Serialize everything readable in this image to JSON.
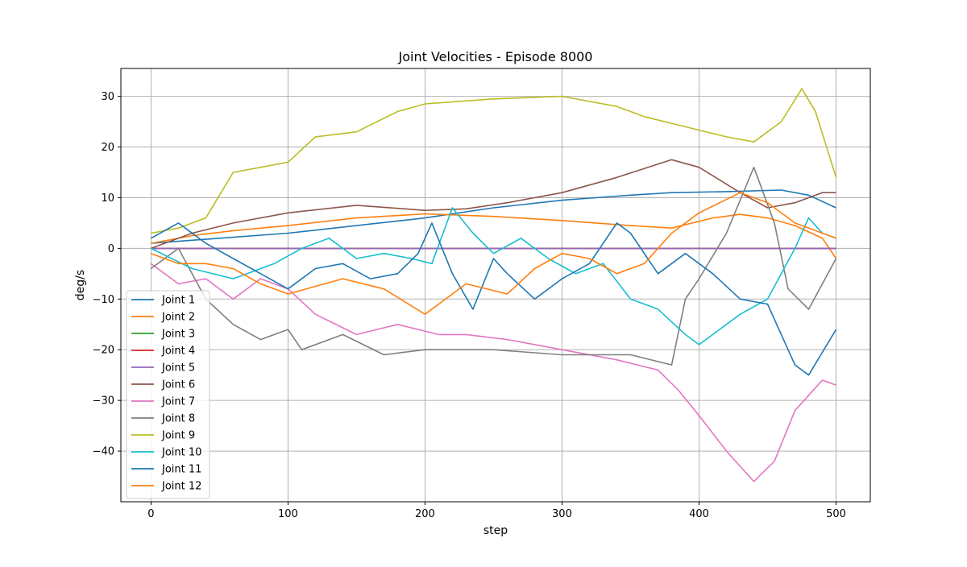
{
  "chart_data": {
    "type": "line",
    "title": "Joint Velocities - Episode 8000",
    "xlabel": "step",
    "ylabel": "deg/s",
    "xlim": [
      -22,
      525
    ],
    "ylim": [
      -50,
      35.5
    ],
    "xticks": [
      0,
      100,
      200,
      300,
      400,
      500
    ],
    "yticks": [
      -40,
      -30,
      -20,
      -10,
      0,
      10,
      20,
      30
    ],
    "grid": true,
    "legend_position": "lower left",
    "series": [
      {
        "name": "Joint 1",
        "color": "#1f77b4",
        "points": [
          [
            0,
            1
          ],
          [
            50,
            2
          ],
          [
            100,
            3
          ],
          [
            150,
            4.5
          ],
          [
            200,
            6
          ],
          [
            250,
            8
          ],
          [
            300,
            9.5
          ],
          [
            350,
            10.5
          ],
          [
            380,
            11
          ],
          [
            420,
            11.2
          ],
          [
            460,
            11.5
          ],
          [
            480,
            10.5
          ],
          [
            500,
            8
          ]
        ]
      },
      {
        "name": "Joint 2",
        "color": "#ff7f0e",
        "points": [
          [
            0,
            1
          ],
          [
            30,
            2.5
          ],
          [
            60,
            3.5
          ],
          [
            100,
            4.5
          ],
          [
            150,
            6
          ],
          [
            200,
            6.8
          ],
          [
            250,
            6.3
          ],
          [
            300,
            5.5
          ],
          [
            350,
            4.5
          ],
          [
            380,
            4
          ],
          [
            410,
            6
          ],
          [
            430,
            6.7
          ],
          [
            450,
            6
          ],
          [
            470,
            4.5
          ],
          [
            490,
            2
          ],
          [
            500,
            -2
          ]
        ]
      },
      {
        "name": "Joint 3",
        "color": "#2ca02c",
        "points": [
          [
            0,
            0
          ],
          [
            500,
            0
          ]
        ]
      },
      {
        "name": "Joint 4",
        "color": "#d62728",
        "points": [
          [
            0,
            0
          ],
          [
            500,
            0
          ]
        ]
      },
      {
        "name": "Joint 5",
        "color": "#9467bd",
        "points": [
          [
            0,
            0
          ],
          [
            500,
            0
          ]
        ]
      },
      {
        "name": "Joint 6",
        "color": "#8c564b",
        "points": [
          [
            0,
            0
          ],
          [
            30,
            3
          ],
          [
            60,
            5
          ],
          [
            100,
            7
          ],
          [
            150,
            8.5
          ],
          [
            200,
            7.5
          ],
          [
            230,
            7.8
          ],
          [
            260,
            9
          ],
          [
            300,
            11
          ],
          [
            340,
            14
          ],
          [
            380,
            17.5
          ],
          [
            400,
            16
          ],
          [
            430,
            11
          ],
          [
            450,
            8
          ],
          [
            470,
            9
          ],
          [
            490,
            11
          ],
          [
            500,
            11
          ]
        ]
      },
      {
        "name": "Joint 7",
        "color": "#e377c2",
        "points": [
          [
            0,
            -3
          ],
          [
            20,
            -7
          ],
          [
            40,
            -6
          ],
          [
            60,
            -10
          ],
          [
            80,
            -6
          ],
          [
            100,
            -8
          ],
          [
            120,
            -13
          ],
          [
            150,
            -17
          ],
          [
            180,
            -15
          ],
          [
            210,
            -17
          ],
          [
            230,
            -17
          ],
          [
            260,
            -18
          ],
          [
            300,
            -20
          ],
          [
            340,
            -22
          ],
          [
            370,
            -24
          ],
          [
            385,
            -28
          ],
          [
            400,
            -33
          ],
          [
            420,
            -40
          ],
          [
            440,
            -46
          ],
          [
            455,
            -42
          ],
          [
            470,
            -32
          ],
          [
            490,
            -26
          ],
          [
            500,
            -27
          ]
        ]
      },
      {
        "name": "Joint 8",
        "color": "#7f7f7f",
        "points": [
          [
            0,
            -4
          ],
          [
            20,
            0
          ],
          [
            40,
            -10
          ],
          [
            60,
            -15
          ],
          [
            80,
            -18
          ],
          [
            100,
            -16
          ],
          [
            110,
            -20
          ],
          [
            140,
            -17
          ],
          [
            170,
            -21
          ],
          [
            200,
            -20
          ],
          [
            250,
            -20
          ],
          [
            300,
            -21
          ],
          [
            350,
            -21
          ],
          [
            380,
            -23
          ],
          [
            390,
            -10
          ],
          [
            400,
            -6
          ],
          [
            420,
            3
          ],
          [
            440,
            16
          ],
          [
            455,
            5
          ],
          [
            465,
            -8
          ],
          [
            480,
            -12
          ],
          [
            500,
            -2
          ]
        ]
      },
      {
        "name": "Joint 9",
        "color": "#bcbd22",
        "points": [
          [
            0,
            3
          ],
          [
            20,
            4
          ],
          [
            40,
            6
          ],
          [
            60,
            15
          ],
          [
            80,
            16
          ],
          [
            100,
            17
          ],
          [
            120,
            22
          ],
          [
            150,
            23
          ],
          [
            180,
            27
          ],
          [
            200,
            28.5
          ],
          [
            250,
            29.5
          ],
          [
            300,
            30
          ],
          [
            340,
            28
          ],
          [
            360,
            26
          ],
          [
            390,
            24
          ],
          [
            420,
            22
          ],
          [
            440,
            21
          ],
          [
            460,
            25
          ],
          [
            475,
            31.5
          ],
          [
            485,
            27
          ],
          [
            500,
            14
          ]
        ]
      },
      {
        "name": "Joint 10",
        "color": "#17becf",
        "points": [
          [
            0,
            0
          ],
          [
            30,
            -4
          ],
          [
            60,
            -6
          ],
          [
            90,
            -3
          ],
          [
            110,
            0
          ],
          [
            130,
            2
          ],
          [
            150,
            -2
          ],
          [
            170,
            -1
          ],
          [
            190,
            -2
          ],
          [
            205,
            -3
          ],
          [
            220,
            8
          ],
          [
            235,
            3
          ],
          [
            250,
            -1
          ],
          [
            270,
            2
          ],
          [
            290,
            -2
          ],
          [
            310,
            -5
          ],
          [
            330,
            -3
          ],
          [
            350,
            -10
          ],
          [
            370,
            -12
          ],
          [
            390,
            -17
          ],
          [
            400,
            -19
          ],
          [
            430,
            -13
          ],
          [
            450,
            -10
          ],
          [
            470,
            0
          ],
          [
            480,
            6
          ],
          [
            490,
            3
          ],
          [
            500,
            2
          ]
        ]
      },
      {
        "name": "Joint 11",
        "color": "#1f77b4",
        "points": [
          [
            0,
            2
          ],
          [
            20,
            5
          ],
          [
            40,
            1
          ],
          [
            60,
            -2
          ],
          [
            80,
            -5
          ],
          [
            100,
            -8
          ],
          [
            120,
            -4
          ],
          [
            140,
            -3
          ],
          [
            160,
            -6
          ],
          [
            180,
            -5
          ],
          [
            195,
            -1
          ],
          [
            205,
            5
          ],
          [
            220,
            -5
          ],
          [
            235,
            -12
          ],
          [
            250,
            -2
          ],
          [
            260,
            -5
          ],
          [
            280,
            -10
          ],
          [
            300,
            -6
          ],
          [
            320,
            -3
          ],
          [
            340,
            5
          ],
          [
            350,
            3
          ],
          [
            370,
            -5
          ],
          [
            390,
            -1
          ],
          [
            410,
            -5
          ],
          [
            430,
            -10
          ],
          [
            450,
            -11
          ],
          [
            470,
            -23
          ],
          [
            480,
            -25
          ],
          [
            500,
            -16
          ]
        ]
      },
      {
        "name": "Joint 12",
        "color": "#ff7f0e",
        "points": [
          [
            0,
            -1
          ],
          [
            20,
            -3
          ],
          [
            40,
            -3
          ],
          [
            60,
            -4
          ],
          [
            80,
            -7
          ],
          [
            100,
            -9
          ],
          [
            140,
            -6
          ],
          [
            170,
            -8
          ],
          [
            200,
            -13
          ],
          [
            230,
            -7
          ],
          [
            260,
            -9
          ],
          [
            280,
            -4
          ],
          [
            300,
            -1
          ],
          [
            320,
            -2
          ],
          [
            340,
            -5
          ],
          [
            360,
            -3
          ],
          [
            380,
            3
          ],
          [
            400,
            7
          ],
          [
            430,
            11
          ],
          [
            450,
            9
          ],
          [
            470,
            5
          ],
          [
            490,
            3
          ],
          [
            500,
            2
          ]
        ]
      }
    ]
  }
}
